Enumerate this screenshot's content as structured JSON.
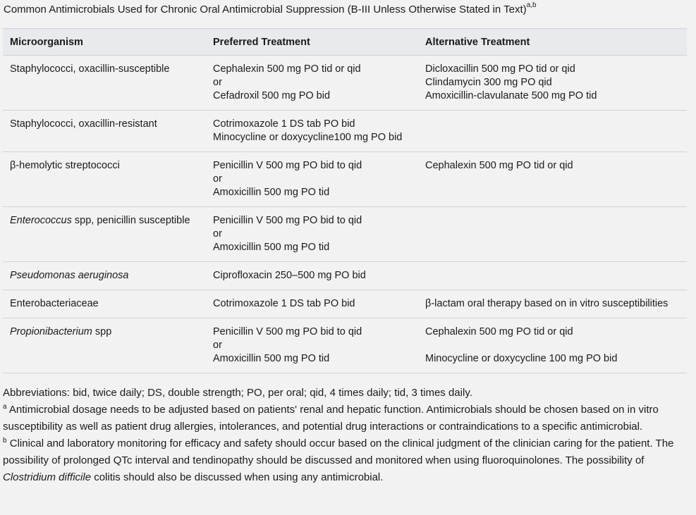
{
  "caption": {
    "text": "Common Antimicrobials Used for Chronic Oral Antimicrobial Suppression (B-III Unless Otherwise Stated in Text)",
    "sup": "a,b"
  },
  "table": {
    "headers": [
      "Microorganism",
      "Preferred Treatment",
      "Alternative Treatment"
    ],
    "rows": [
      {
        "organism": "Staphylococci, oxacillin-susceptible",
        "organism_italic": "",
        "preferred": [
          "Cephalexin 500 mg PO tid or qid",
          "or",
          "Cefadroxil 500 mg PO bid"
        ],
        "alternative": [
          "Dicloxacillin 500 mg PO tid or qid",
          "Clindamycin 300 mg PO qid",
          "Amoxicillin-clavulanate 500 mg PO tid"
        ]
      },
      {
        "organism": "Staphylococci, oxacillin-resistant",
        "organism_italic": "",
        "preferred": [
          "Cotrimoxazole 1 DS tab PO bid",
          "Minocycline or doxycycline100 mg PO bid"
        ],
        "alternative": []
      },
      {
        "organism": "β-hemolytic streptococci",
        "organism_italic": "",
        "preferred": [
          "Penicillin V 500 mg PO bid to qid",
          "or",
          "Amoxicillin 500 mg PO tid"
        ],
        "alternative": [
          "Cephalexin 500 mg PO tid or qid"
        ]
      },
      {
        "organism": " spp, penicillin susceptible",
        "organism_italic": "Enterococcus",
        "preferred": [
          "Penicillin V 500 mg PO bid to qid",
          "or",
          "Amoxicillin 500 mg PO tid"
        ],
        "alternative": []
      },
      {
        "organism": "",
        "organism_italic": "Pseudomonas aeruginosa",
        "preferred": [
          "Ciprofloxacin 250–500 mg PO bid"
        ],
        "alternative": []
      },
      {
        "organism": "Enterobacteriaceae",
        "organism_italic": "",
        "preferred": [
          "Cotrimoxazole 1 DS tab PO bid"
        ],
        "alternative": [
          "β-lactam oral therapy based on in vitro susceptibilities"
        ]
      },
      {
        "organism": " spp",
        "organism_italic": "Propionibacterium",
        "preferred": [
          "Penicillin V 500 mg PO bid to qid",
          "or",
          "Amoxicillin 500 mg PO tid"
        ],
        "alternative": [
          "Cephalexin 500 mg PO tid or qid",
          "",
          "Minocycline or doxycycline 100 mg PO bid"
        ]
      }
    ]
  },
  "notes": {
    "abbreviations": "Abbreviations: bid, twice daily; DS, double strength; PO, per oral; qid, 4 times daily; tid, 3 times daily.",
    "a_mark": "a",
    "a_text": " Antimicrobial dosage needs to be adjusted based on patients' renal and hepatic function. Antimicrobials should be chosen based on in vitro susceptibility as well as patient drug allergies, intolerances, and potential drug interactions or contraindications to a specific antimicrobial.",
    "b_mark": "b",
    "b_text_1": " Clinical and laboratory monitoring for efficacy and safety should occur based on the clinical judgment of the clinician caring for the patient. The possibility of prolonged QTc interval and tendinopathy should be discussed and monitored when using fluoroquinolones. The possibility of ",
    "b_italic": "Clostridium difficile",
    "b_text_2": " colitis should also be discussed when using any antimicrobial."
  }
}
